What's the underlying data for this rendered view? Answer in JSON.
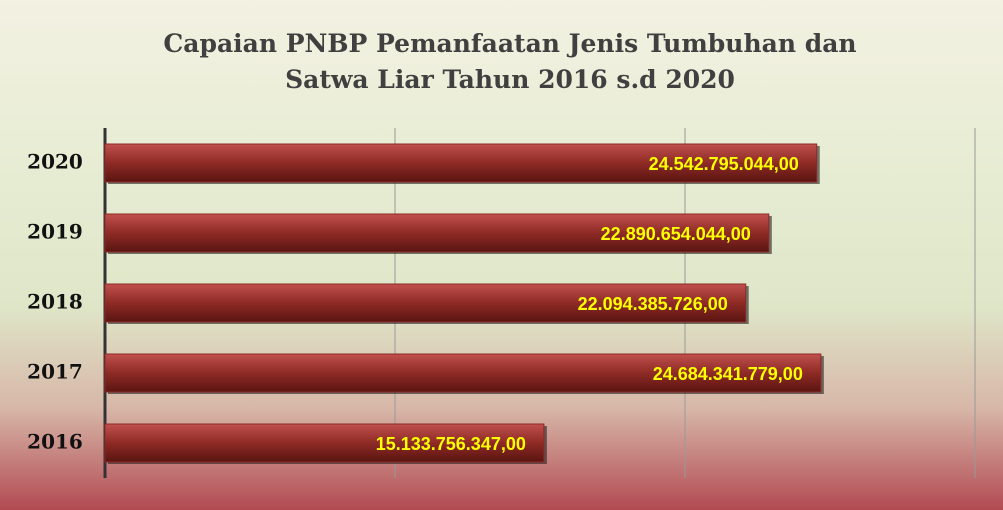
{
  "chart_data": {
    "type": "hbar",
    "title": "Capaian PNBP Pemanfaatan Jenis Tumbuhan dan Satwa Liar Tahun 2016 s.d 2020",
    "categories": [
      "2020",
      "2019",
      "2018",
      "2017",
      "2016"
    ],
    "values": [
      24542795044,
      22890654044,
      22094385726,
      24684341779,
      15133756347
    ],
    "value_labels": [
      "24.542.795.044,00",
      "22.890.654.044,00",
      "22.094.385.726,00",
      "24.684.341.779,00",
      "15.133.756.347,00"
    ],
    "color": "#8e2a25",
    "xlim": [
      0,
      30000000000
    ],
    "xticks": [
      0,
      10000000000,
      20000000000,
      30000000000
    ],
    "grid": true
  }
}
